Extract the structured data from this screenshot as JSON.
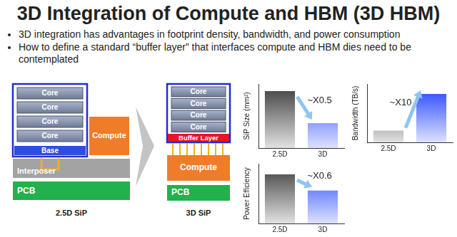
{
  "title": "3D Integration of Compute and HBM (3D HBM)",
  "bullets": [
    "3D integration has advantages in footprint density, bandwidth, and power consumption",
    "How to define a standard “buffer layer” that interfaces compute and HBM dies need to be contemplated"
  ],
  "diagram": {
    "left": {
      "caption": "2.5D SiP",
      "cores": [
        "Core",
        "Core",
        "Core",
        "Core"
      ],
      "base": "Base",
      "compute": "Compute",
      "interposer": "Interposer",
      "pcb": "PCB"
    },
    "right": {
      "caption": "3D SiP",
      "cores": [
        "Core",
        "Core",
        "Core",
        "Core"
      ],
      "buffer": "Buffer Layer",
      "compute": "Compute",
      "pcb": "PCB"
    }
  },
  "chart_data": [
    {
      "type": "bar",
      "y_label": "SiP Size (mm²)",
      "categories": [
        "2.5D",
        "3D"
      ],
      "values": [
        89,
        39
      ],
      "colors": [
        "#3a3a3a",
        "#1a3cff"
      ],
      "ylim": [
        0,
        100
      ],
      "tick_labels": "x",
      "grid": false,
      "annotation": "~X0.5"
    },
    {
      "type": "bar",
      "y_label": "Bandwidth (TB/s)",
      "categories": [
        "2.5D",
        "3D"
      ],
      "values": [
        20,
        83
      ],
      "colors": [
        "#3a3a3a",
        "#1a3cff"
      ],
      "ylim": [
        0,
        100
      ],
      "tick_labels": "x",
      "grid": false,
      "annotation": "~X10"
    },
    {
      "type": "bar",
      "y_label": "Power Efficiency",
      "categories": [
        "2.5D",
        "3D"
      ],
      "values": [
        82,
        55
      ],
      "colors": [
        "#3a3a3a",
        "#1a3cff"
      ],
      "ylim": [
        0,
        100
      ],
      "tick_labels": "x",
      "grid": false,
      "annotation": "~X0.6"
    }
  ]
}
